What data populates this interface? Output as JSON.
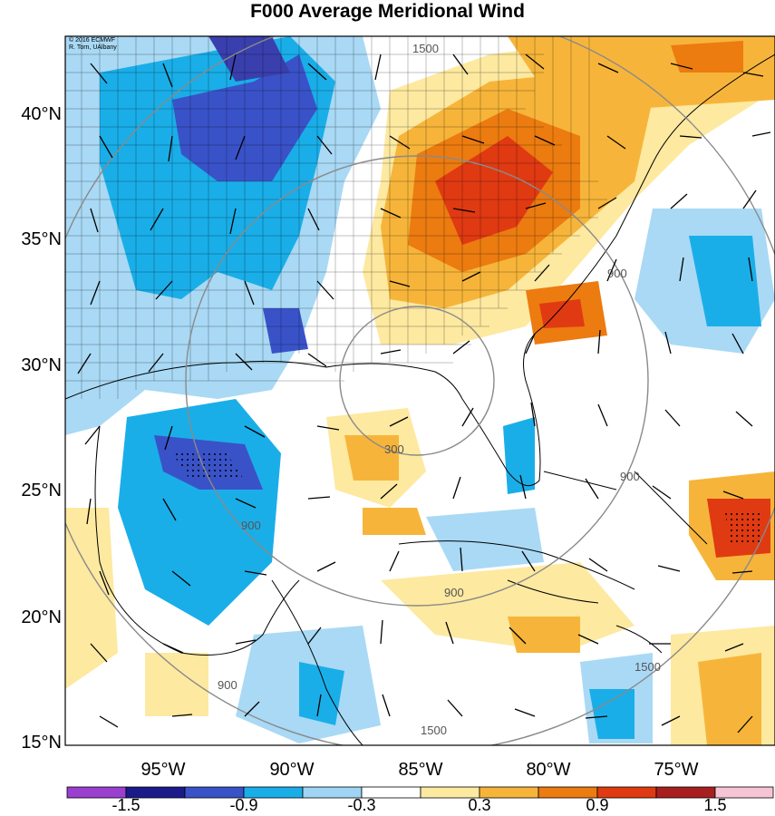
{
  "title": "F000 Average Meridional Wind",
  "credit": [
    "© 2016 ECMWF",
    "R. Torn, UAlbany"
  ],
  "lat_labels": [
    "40°N",
    "35°N",
    "30°N",
    "25°N",
    "20°N",
    "15°N"
  ],
  "lon_labels": [
    "95°W",
    "90°W",
    "85°W",
    "80°W",
    "75°W"
  ],
  "contour_labels": [
    "300",
    "900",
    "900",
    "900",
    "1500",
    "1500",
    "1500",
    "900",
    "900"
  ],
  "colorbar": {
    "ticks": [
      "-1.5",
      "-0.9",
      "-0.3",
      "0.3",
      "0.9",
      "1.5"
    ],
    "colors": [
      "#9a3fd0",
      "#1a1a8a",
      "#3a52c8",
      "#1aaee8",
      "#9fd4f5",
      "#ffffff",
      "#fde9a0",
      "#f6b53a",
      "#ec7b10",
      "#e03a12",
      "#a81f1f",
      "#f7c4d6"
    ]
  },
  "legend_colors": {
    "strong_neg": "#3a3fae",
    "mid_neg": "#1aaee8",
    "weak_neg": "#a9d9f5",
    "weak_pos": "#fde9a0",
    "mid_pos": "#f6b53a",
    "strong_pos": "#ee8a12",
    "very_pos": "#e2521a"
  }
}
